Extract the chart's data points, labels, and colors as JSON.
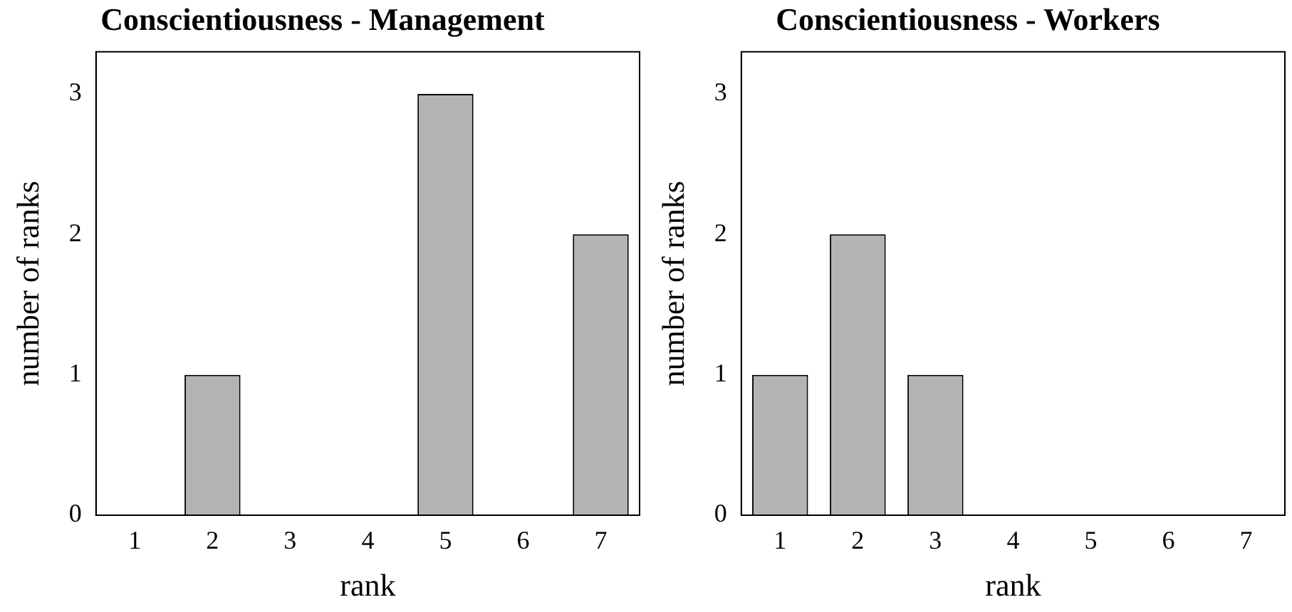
{
  "chart_data": [
    {
      "type": "bar",
      "title": "Conscientiousness - Management",
      "xlabel": "rank",
      "ylabel": "number of ranks",
      "categories": [
        "1",
        "2",
        "3",
        "4",
        "5",
        "6",
        "7"
      ],
      "values": [
        0,
        1,
        0,
        0,
        3,
        0,
        2
      ],
      "color": "#b3b3b3",
      "ylim": [
        0,
        3.3
      ],
      "yticks": [
        0,
        1,
        2,
        3
      ]
    },
    {
      "type": "bar",
      "title": "Conscientiousness - Workers",
      "xlabel": "rank",
      "ylabel": "number of ranks",
      "categories": [
        "1",
        "2",
        "3",
        "4",
        "5",
        "6",
        "7"
      ],
      "values": [
        1,
        2,
        1,
        0,
        0,
        0,
        0
      ],
      "color": "#b3b3b3",
      "ylim": [
        0,
        3.3
      ],
      "yticks": [
        0,
        1,
        2,
        3
      ]
    }
  ]
}
